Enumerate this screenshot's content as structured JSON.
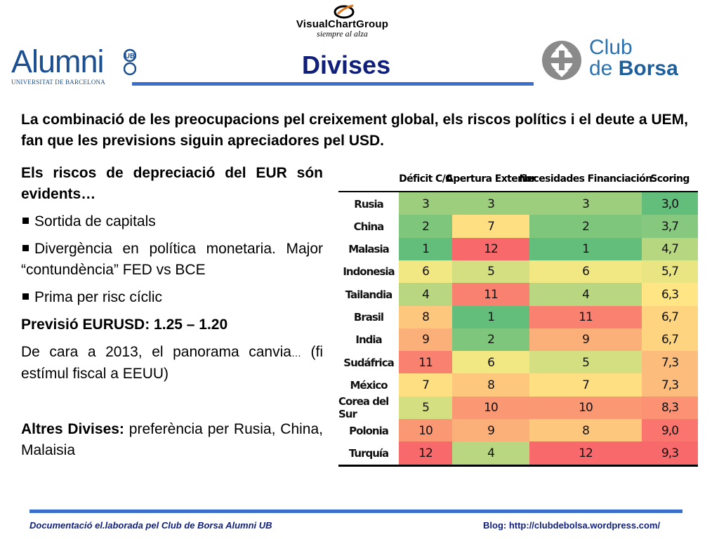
{
  "logos": {
    "top_brand": "VisualChartGroup",
    "top_tagline": "siempre al alza",
    "alumni_word": "Alumni",
    "alumni_ub": "UB",
    "alumni_sub": "UNIVERSITAT DE BARCELONA",
    "club_line1": "Club",
    "club_line2_a": "de ",
    "club_line2_b": "Borsa"
  },
  "title": "Divises",
  "intro": "La combinació de les preocupacions pel creixement global, els riscos polítics i el deute a UEM, fan que les previsions siguin apreciadores pel USD.",
  "left": {
    "heading": "Els riscos de depreciació del EUR són evidents…",
    "bullets": [
      "Sortida de capitals",
      "Divergència en política monetaria. Major “contundència” FED vs BCE",
      "Prima per risc cíclic"
    ],
    "forecast": "Previsió EURUSD: 1.25 – 1.20",
    "outlook_a": "De cara a 2013, el panorama canvia",
    "outlook_ellipsis": "…",
    "outlook_b": " (fi estímul fiscal a EEUU)",
    "other_label": "Altres Divises:",
    "other_text": " preferència per Rusia, China, Malaisia"
  },
  "table": {
    "headers": [
      "Déficit C/C",
      "Apertura Exterior",
      "Necesidades Financiación",
      "Scoring"
    ],
    "rows": [
      {
        "country": "Rusia",
        "deficit": "3",
        "apertura": "3",
        "necesidades": "3",
        "scoring": "3,0"
      },
      {
        "country": "China",
        "deficit": "2",
        "apertura": "7",
        "necesidades": "2",
        "scoring": "3,7"
      },
      {
        "country": "Malasia",
        "deficit": "1",
        "apertura": "12",
        "necesidades": "1",
        "scoring": "4,7"
      },
      {
        "country": "Indonesia",
        "deficit": "6",
        "apertura": "5",
        "necesidades": "6",
        "scoring": "5,7"
      },
      {
        "country": "Tailandia",
        "deficit": "4",
        "apertura": "11",
        "necesidades": "4",
        "scoring": "6,3"
      },
      {
        "country": "Brasil",
        "deficit": "8",
        "apertura": "1",
        "necesidades": "11",
        "scoring": "6,7"
      },
      {
        "country": "India",
        "deficit": "9",
        "apertura": "2",
        "necesidades": "9",
        "scoring": "6,7"
      },
      {
        "country": "Sudáfrica",
        "deficit": "11",
        "apertura": "6",
        "necesidades": "5",
        "scoring": "7,3"
      },
      {
        "country": "México",
        "deficit": "7",
        "apertura": "8",
        "necesidades": "7",
        "scoring": "7,3"
      },
      {
        "country": "Corea del Sur",
        "deficit": "5",
        "apertura": "10",
        "necesidades": "10",
        "scoring": "8,3"
      },
      {
        "country": "Polonia",
        "deficit": "10",
        "apertura": "9",
        "necesidades": "8",
        "scoring": "9,0"
      },
      {
        "country": "Turquía",
        "deficit": "12",
        "apertura": "4",
        "necesidades": "12",
        "scoring": "9,3"
      }
    ],
    "heat_colors": {
      "low": "#63be7b",
      "mid": "#ffeb84",
      "high": "#f8696b"
    }
  },
  "footer": {
    "left": "Documentació el.laborada pel Club de Borsa Alumni UB",
    "right": "Blog: http://clubdebolsa.wordpress.com/"
  },
  "colors": {
    "title": "#0f1f7a",
    "rule": "#3a6fcb",
    "logo_blue": "#1b4f91"
  }
}
